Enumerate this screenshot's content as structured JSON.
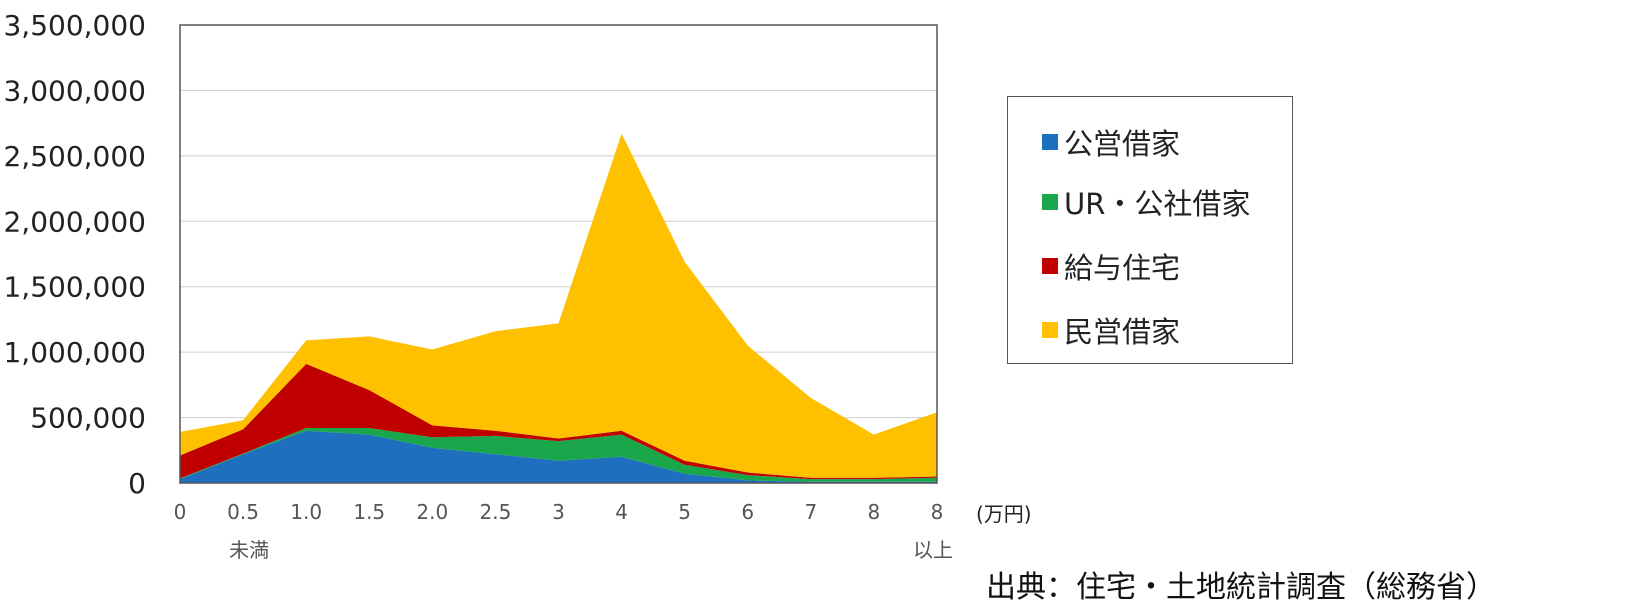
{
  "chart_data": {
    "type": "area",
    "stacked": true,
    "categories": [
      "0",
      "0.5",
      "1.0",
      "1.5",
      "2.0",
      "2.5",
      "3",
      "4",
      "5",
      "6",
      "7",
      "8",
      "8"
    ],
    "category_sublabels": [
      "",
      "未満",
      "",
      "",
      "",
      "",
      "",
      "",
      "",
      "",
      "",
      "",
      "以上"
    ],
    "x_unit": "(万円)",
    "ylim": [
      0,
      3500000
    ],
    "yticks": [
      "0",
      "500,000",
      "1,000,000",
      "1,500,000",
      "2,000,000",
      "2,500,000",
      "3,000,000",
      "3,500,000"
    ],
    "grid": true,
    "legend_position": "right",
    "series": [
      {
        "name": "公営借家",
        "color": "#1f6fbf",
        "values": [
          30000,
          220000,
          400000,
          370000,
          270000,
          220000,
          170000,
          200000,
          70000,
          20000,
          10000,
          10000,
          10000
        ]
      },
      {
        "name": "UR・公社借家",
        "color": "#1aa64a",
        "values": [
          5000,
          5000,
          20000,
          50000,
          80000,
          140000,
          150000,
          170000,
          70000,
          40000,
          20000,
          20000,
          30000
        ]
      },
      {
        "name": "給与住宅",
        "color": "#c00000",
        "values": [
          175000,
          185000,
          490000,
          290000,
          90000,
          40000,
          20000,
          30000,
          30000,
          20000,
          10000,
          10000,
          10000
        ]
      },
      {
        "name": "民営借家",
        "color": "#ffc000",
        "values": [
          180000,
          70000,
          180000,
          410000,
          580000,
          760000,
          880000,
          2270000,
          1520000,
          970000,
          610000,
          330000,
          490000
        ]
      }
    ]
  },
  "source_text": "出典：住宅・土地統計調査（総務省）"
}
